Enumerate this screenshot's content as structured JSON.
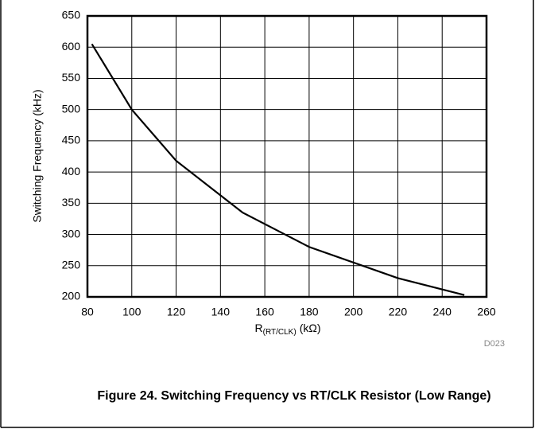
{
  "chart_data": {
    "type": "line",
    "ylabel": "Switching Frequency (kHz)",
    "xlabel": {
      "main": "R",
      "sub": "(RT/CLK)",
      "unit": "(kΩ)"
    },
    "annotation": "D023",
    "caption": "Figure 24. Switching Frequency vs RT/CLK Resistor (Low Range)",
    "x": [
      82,
      100,
      120,
      150,
      180,
      220,
      250
    ],
    "series": [
      {
        "name": "Switching Frequency",
        "color": "#000000",
        "values": [
          605,
          500,
          418,
          335,
          280,
          230,
          203
        ]
      }
    ],
    "xlim": [
      80,
      260
    ],
    "xticks": [
      80,
      100,
      120,
      140,
      160,
      180,
      200,
      220,
      240,
      260
    ],
    "ylim": [
      200,
      650
    ],
    "yticks": [
      200,
      250,
      300,
      350,
      400,
      450,
      500,
      550,
      600,
      650
    ],
    "grid": true
  }
}
